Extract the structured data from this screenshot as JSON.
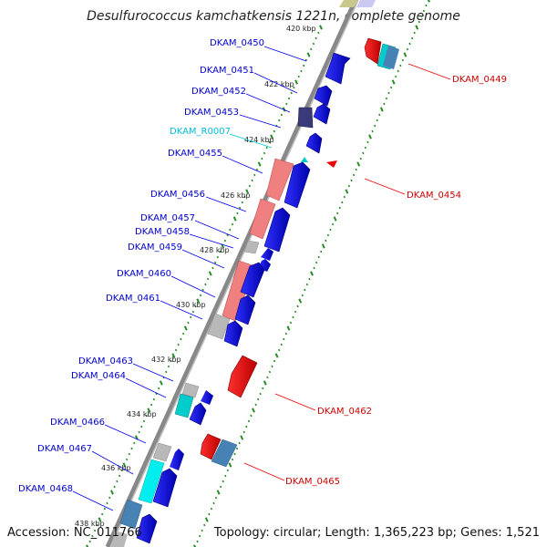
{
  "title": "Desulfurococcus kamchatkensis 1221n, complete genome",
  "footer": {
    "accession": "Accession: NC_011766",
    "topology": "Topology: circular; Length: 1,365,223 bp; Genes: 1,521"
  },
  "colors": {
    "cds": "#0000ee",
    "cds_label": "#0000cc",
    "rev_cds": "#ee0000",
    "rev_label": "#cc0000",
    "rrna": "#f08080",
    "trna": "#00cccc",
    "grey": "#b8b8b8",
    "indigo": "#3a3a7a",
    "steel": "#4682b4",
    "olive": "#c8c88c",
    "lavender": "#c8c8f0",
    "backbone": "#888888",
    "tick": "#228b22"
  },
  "ticks": [
    "420 kbp",
    "422 kbp",
    "424 kbp",
    "426 kbp",
    "428 kbp",
    "430 kbp",
    "432 kbp",
    "434 kbp",
    "436 kbp",
    "438 kbp"
  ],
  "left_labels": [
    "DKAM_0450",
    "DKAM_0451",
    "DKAM_0452",
    "DKAM_0453",
    "DKAM_R0007",
    "DKAM_0455",
    "DKAM_0456",
    "DKAM_0457",
    "DKAM_0458",
    "DKAM_0459",
    "DKAM_0460",
    "DKAM_0461",
    "DKAM_0463",
    "DKAM_0464",
    "DKAM_0466",
    "DKAM_0467",
    "DKAM_0468"
  ],
  "right_labels": [
    "DKAM_0449",
    "DKAM_0454",
    "DKAM_0462",
    "DKAM_0465"
  ]
}
